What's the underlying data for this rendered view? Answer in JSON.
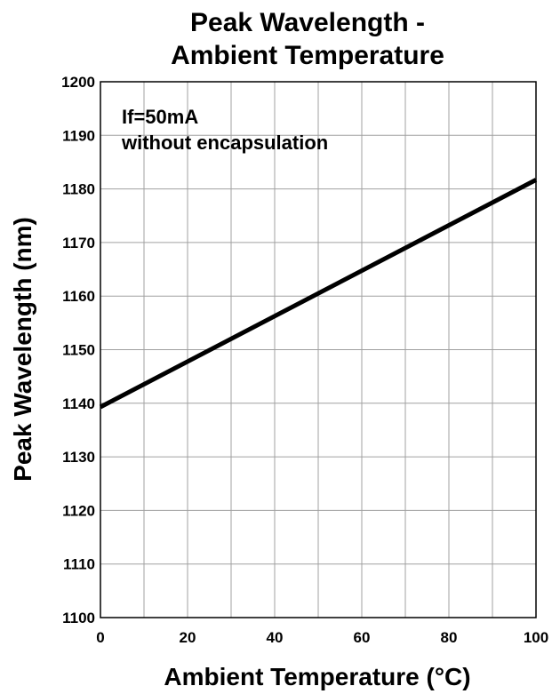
{
  "chart_data": {
    "type": "line",
    "title": [
      "Peak Wavelength -",
      "Ambient Temperature"
    ],
    "xlabel": "Ambient Temperature (°C)",
    "ylabel": "Peak Wavelength (nm)",
    "xlim": [
      0,
      100
    ],
    "ylim": [
      1100,
      1200
    ],
    "x_ticks": [
      0,
      20,
      40,
      60,
      80,
      100
    ],
    "x_minor_step": 10,
    "y_ticks": [
      1100,
      1110,
      1120,
      1130,
      1140,
      1150,
      1160,
      1170,
      1180,
      1190,
      1200
    ],
    "grid": true,
    "annotation": [
      "If=50mA",
      "without encapsulation"
    ],
    "series": [
      {
        "x": [
          0,
          100
        ],
        "y": [
          1139.3,
          1181.7
        ]
      }
    ]
  }
}
